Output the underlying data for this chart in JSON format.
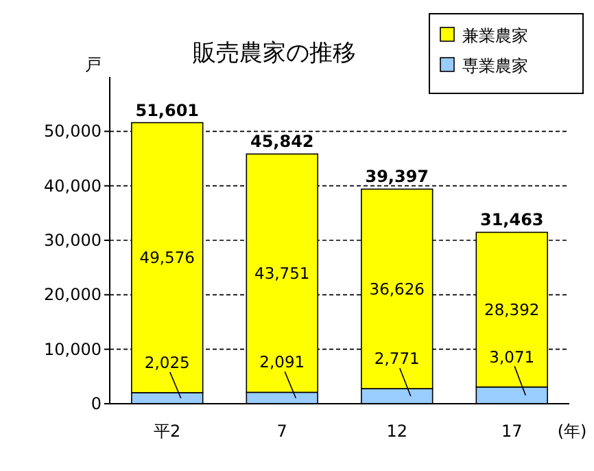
{
  "chart_data": {
    "type": "bar",
    "title": "販売農家の推移",
    "ylabel": "戸",
    "xlabel": "(年)",
    "categories": [
      "平2",
      "7",
      "12",
      "17"
    ],
    "stacked": true,
    "series": [
      {
        "name": "専業農家",
        "color": "#99ccff",
        "values": [
          2025,
          2091,
          2771,
          3071
        ],
        "value_labels": [
          "2,025",
          "2,091",
          "2,771",
          "3,071"
        ]
      },
      {
        "name": "兼業農家",
        "color": "#ffff00",
        "values": [
          49576,
          43751,
          36626,
          28392
        ],
        "value_labels": [
          "49,576",
          "43,751",
          "36,626",
          "28,392"
        ]
      }
    ],
    "totals": [
      "51,601",
      "45,842",
      "39,397",
      "31,463"
    ],
    "ylim": [
      0,
      60000
    ],
    "yticks": [
      {
        "value": 0,
        "label": "0"
      },
      {
        "value": 10000,
        "label": "10,000"
      },
      {
        "value": 20000,
        "label": "20,000"
      },
      {
        "value": 30000,
        "label": "30,000"
      },
      {
        "value": 40000,
        "label": "40,000"
      },
      {
        "value": 50000,
        "label": "50,000"
      }
    ],
    "grid": "y",
    "legend": "top right"
  }
}
